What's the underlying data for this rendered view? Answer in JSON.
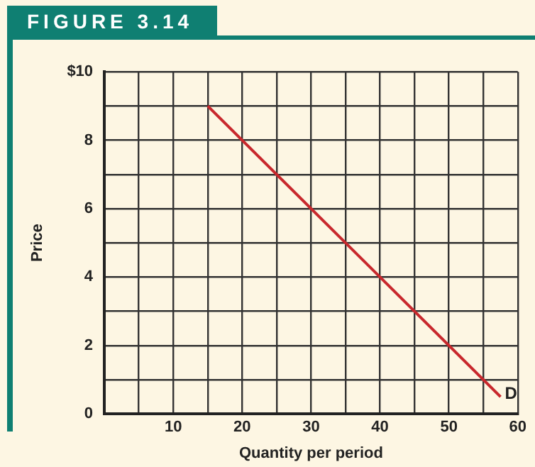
{
  "chart_data": {
    "type": "line",
    "title": "FIGURE 3.14",
    "xlabel": "Quantity per period",
    "ylabel": "Price",
    "x": [
      15,
      57.5
    ],
    "series": [
      {
        "color": "#c8282d",
        "values": [
          9,
          0.5
        ]
      }
    ],
    "xlim": [
      0,
      60
    ],
    "xticks": [
      {
        "value": 0,
        "label": null
      },
      {
        "value": 5,
        "label": null
      },
      10,
      {
        "value": 15,
        "label": null
      },
      20,
      {
        "value": 25,
        "label": null
      },
      30,
      {
        "value": 35,
        "label": null
      },
      40,
      {
        "value": 45,
        "label": null
      },
      50,
      {
        "value": 55,
        "label": null
      },
      60
    ],
    "ylim": [
      0,
      10
    ],
    "yticks": [
      0,
      {
        "value": 1,
        "label": null
      },
      2,
      {
        "value": 3,
        "label": null
      },
      4,
      {
        "value": 5,
        "label": null
      },
      6,
      {
        "value": 7,
        "label": null
      },
      8,
      {
        "value": 9,
        "label": null
      },
      {
        "value": 10,
        "label": "$10"
      }
    ],
    "annotations": [
      {
        "text": "D",
        "x": 57.5,
        "y": 0.5
      }
    ],
    "grid": true,
    "legend": false,
    "marker": "none",
    "line_style": "solid"
  }
}
